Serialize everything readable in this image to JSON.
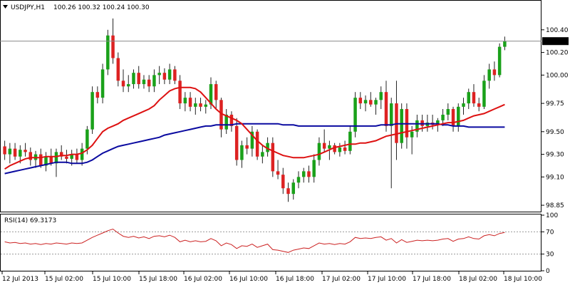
{
  "header": {
    "symbol": "USDJPY,H1",
    "ohlc": "100.26 100.32 100.24 100.30"
  },
  "colors": {
    "bull": "#1aa11a",
    "bear": "#dd2222",
    "wick": "#222222",
    "ma_fast": "#dd1111",
    "ma_slow": "#0a0aa0",
    "rsi": "#cc2222",
    "price_line": "#888888",
    "price_tag_bg": "#000000",
    "price_tag_fg": "#ffffff"
  },
  "chart_data": [
    {
      "type": "candlestick",
      "y_ticks": [
        "100.40",
        "100.20",
        "100.00",
        "99.75",
        "99.50",
        "99.30",
        "99.10",
        "98.85"
      ],
      "ylim": [
        98.8,
        100.55
      ],
      "current_price": "100.30",
      "x_labels": [
        "12 Jul 2013",
        "15 Jul 02:00",
        "15 Jul 10:00",
        "15 Jul 18:00",
        "16 Jul 02:00",
        "16 Jul 10:00",
        "16 Jul 18:00",
        "17 Jul 02:00",
        "17 Jul 10:00",
        "17 Jul 18:00",
        "18 Jul 02:00",
        "18 Jul 10:00"
      ],
      "candles": [
        [
          99.37,
          99.42,
          99.25,
          99.3
        ],
        [
          99.3,
          99.4,
          99.22,
          99.35
        ],
        [
          99.35,
          99.4,
          99.25,
          99.28
        ],
        [
          99.28,
          99.38,
          99.22,
          99.34
        ],
        [
          99.34,
          99.4,
          99.28,
          99.32
        ],
        [
          99.32,
          99.36,
          99.2,
          99.25
        ],
        [
          99.25,
          99.33,
          99.18,
          99.3
        ],
        [
          99.3,
          99.35,
          99.18,
          99.2
        ],
        [
          99.2,
          99.32,
          99.15,
          99.28
        ],
        [
          99.28,
          99.35,
          99.2,
          99.22
        ],
        [
          99.22,
          99.35,
          99.1,
          99.32
        ],
        [
          99.32,
          99.38,
          99.25,
          99.28
        ],
        [
          99.28,
          99.34,
          99.22,
          99.26
        ],
        [
          99.26,
          99.34,
          99.2,
          99.3
        ],
        [
          99.3,
          99.35,
          99.22,
          99.25
        ],
        [
          99.25,
          99.4,
          99.2,
          99.35
        ],
        [
          99.35,
          99.55,
          99.3,
          99.52
        ],
        [
          99.52,
          99.9,
          99.48,
          99.85
        ],
        [
          99.85,
          99.9,
          99.75,
          99.8
        ],
        [
          99.8,
          100.1,
          99.75,
          100.05
        ],
        [
          100.05,
          100.4,
          100.0,
          100.35
        ],
        [
          100.35,
          100.5,
          100.1,
          100.15
        ],
        [
          100.15,
          100.2,
          99.9,
          99.95
        ],
        [
          99.95,
          100.05,
          99.85,
          99.9
        ],
        [
          99.9,
          100.0,
          99.85,
          99.92
        ],
        [
          99.92,
          100.05,
          99.88,
          100.02
        ],
        [
          100.02,
          100.08,
          99.88,
          99.92
        ],
        [
          99.92,
          100.0,
          99.88,
          99.96
        ],
        [
          99.96,
          100.0,
          99.85,
          99.9
        ],
        [
          99.9,
          100.05,
          99.85,
          100.0
        ],
        [
          100.0,
          100.08,
          99.92,
          100.02
        ],
        [
          100.02,
          100.06,
          99.92,
          99.96
        ],
        [
          99.96,
          100.1,
          99.92,
          100.05
        ],
        [
          100.05,
          100.08,
          99.92,
          99.95
        ],
        [
          99.95,
          100.0,
          99.7,
          99.75
        ],
        [
          99.75,
          99.85,
          99.68,
          99.8
        ],
        [
          99.8,
          99.85,
          99.68,
          99.72
        ],
        [
          99.72,
          99.8,
          99.65,
          99.75
        ],
        [
          99.75,
          99.8,
          99.68,
          99.72
        ],
        [
          99.72,
          99.78,
          99.66,
          99.74
        ],
        [
          99.74,
          99.98,
          99.7,
          99.92
        ],
        [
          99.92,
          99.95,
          99.7,
          99.78
        ],
        [
          99.78,
          99.8,
          99.45,
          99.52
        ],
        [
          99.52,
          99.7,
          99.48,
          99.65
        ],
        [
          99.65,
          99.68,
          99.5,
          99.55
        ],
        [
          99.55,
          99.62,
          99.2,
          99.25
        ],
        [
          99.25,
          99.42,
          99.18,
          99.38
        ],
        [
          99.38,
          99.45,
          99.3,
          99.35
        ],
        [
          99.35,
          99.55,
          99.28,
          99.5
        ],
        [
          99.5,
          99.52,
          99.25,
          99.28
        ],
        [
          99.28,
          99.38,
          99.22,
          99.32
        ],
        [
          99.32,
          99.45,
          99.28,
          99.4
        ],
        [
          99.4,
          99.45,
          99.1,
          99.15
        ],
        [
          99.15,
          99.25,
          99.08,
          99.12
        ],
        [
          99.12,
          99.18,
          98.95,
          99.0
        ],
        [
          99.0,
          99.05,
          98.88,
          98.95
        ],
        [
          98.95,
          99.08,
          98.9,
          99.05
        ],
        [
          99.05,
          99.15,
          99.0,
          99.1
        ],
        [
          99.1,
          99.18,
          99.05,
          99.15
        ],
        [
          99.15,
          99.2,
          99.05,
          99.1
        ],
        [
          99.1,
          99.3,
          99.05,
          99.25
        ],
        [
          99.25,
          99.45,
          99.2,
          99.4
        ],
        [
          99.4,
          99.52,
          99.32,
          99.35
        ],
        [
          99.35,
          99.42,
          99.25,
          99.38
        ],
        [
          99.38,
          99.4,
          99.3,
          99.32
        ],
        [
          99.32,
          99.4,
          99.28,
          99.36
        ],
        [
          99.36,
          99.42,
          99.3,
          99.33
        ],
        [
          99.33,
          99.55,
          99.3,
          99.5
        ],
        [
          99.5,
          99.85,
          99.45,
          99.8
        ],
        [
          99.8,
          99.85,
          99.7,
          99.75
        ],
        [
          99.75,
          99.82,
          99.68,
          99.78
        ],
        [
          99.78,
          99.85,
          99.72,
          99.74
        ],
        [
          99.74,
          99.8,
          99.65,
          99.78
        ],
        [
          99.78,
          99.9,
          99.7,
          99.85
        ],
        [
          99.85,
          99.95,
          99.5,
          99.55
        ],
        [
          99.55,
          99.8,
          99.0,
          99.75
        ],
        [
          99.75,
          99.95,
          99.25,
          99.4
        ],
        [
          99.4,
          99.75,
          99.35,
          99.7
        ],
        [
          99.7,
          99.75,
          99.35,
          99.45
        ],
        [
          99.45,
          99.55,
          99.3,
          99.5
        ],
        [
          99.5,
          99.65,
          99.45,
          99.6
        ],
        [
          99.6,
          99.65,
          99.5,
          99.55
        ],
        [
          99.55,
          99.65,
          99.5,
          99.58
        ],
        [
          99.58,
          99.65,
          99.52,
          99.56
        ],
        [
          99.56,
          99.62,
          99.5,
          99.6
        ],
        [
          99.6,
          99.7,
          99.55,
          99.65
        ],
        [
          99.65,
          99.75,
          99.6,
          99.7
        ],
        [
          99.7,
          99.72,
          99.5,
          99.55
        ],
        [
          99.55,
          99.75,
          99.5,
          99.72
        ],
        [
          99.72,
          99.8,
          99.65,
          99.75
        ],
        [
          99.75,
          99.88,
          99.7,
          99.85
        ],
        [
          99.85,
          99.92,
          99.72,
          99.75
        ],
        [
          99.75,
          99.8,
          99.68,
          99.72
        ],
        [
          99.72,
          100.0,
          99.7,
          99.95
        ],
        [
          99.95,
          100.1,
          99.88,
          100.05
        ],
        [
          100.05,
          100.12,
          99.95,
          100.0
        ],
        [
          100.0,
          100.28,
          99.98,
          100.25
        ],
        [
          100.25,
          100.34,
          100.22,
          100.3
        ]
      ],
      "ma_fast": [
        99.17,
        99.2,
        99.22,
        99.24,
        99.26,
        99.27,
        99.27,
        99.27,
        99.28,
        99.28,
        99.28,
        99.29,
        99.29,
        99.3,
        99.3,
        99.31,
        99.34,
        99.38,
        99.44,
        99.5,
        99.53,
        99.55,
        99.57,
        99.6,
        99.62,
        99.64,
        99.66,
        99.68,
        99.7,
        99.73,
        99.78,
        99.82,
        99.86,
        99.88,
        99.89,
        99.89,
        99.89,
        99.88,
        99.85,
        99.8,
        99.75,
        99.7,
        99.66,
        99.64,
        99.62,
        99.6,
        99.57,
        99.52,
        99.47,
        99.42,
        99.38,
        99.35,
        99.33,
        99.31,
        99.29,
        99.28,
        99.27,
        99.27,
        99.27,
        99.28,
        99.29,
        99.3,
        99.32,
        99.34,
        99.36,
        99.37,
        99.38,
        99.39,
        99.39,
        99.4,
        99.4,
        99.41,
        99.42,
        99.44,
        99.46,
        99.47,
        99.48,
        99.49,
        99.5,
        99.51,
        99.52,
        99.53,
        99.54,
        99.55,
        99.56,
        99.57,
        99.58,
        99.58,
        99.59,
        99.6,
        99.62,
        99.64,
        99.65,
        99.66,
        99.68,
        99.7,
        99.72,
        99.74
      ],
      "ma_slow": [
        99.13,
        99.14,
        99.15,
        99.16,
        99.17,
        99.18,
        99.19,
        99.2,
        99.21,
        99.22,
        99.23,
        99.23,
        99.23,
        99.22,
        99.22,
        99.22,
        99.23,
        99.25,
        99.28,
        99.31,
        99.33,
        99.35,
        99.37,
        99.38,
        99.39,
        99.4,
        99.41,
        99.42,
        99.43,
        99.44,
        99.45,
        99.47,
        99.48,
        99.49,
        99.5,
        99.51,
        99.52,
        99.53,
        99.54,
        99.55,
        99.55,
        99.56,
        99.56,
        99.56,
        99.56,
        99.57,
        99.57,
        99.57,
        99.57,
        99.57,
        99.57,
        99.57,
        99.57,
        99.57,
        99.56,
        99.56,
        99.56,
        99.55,
        99.55,
        99.55,
        99.55,
        99.55,
        99.55,
        99.55,
        99.55,
        99.55,
        99.55,
        99.55,
        99.55,
        99.55,
        99.55,
        99.55,
        99.55,
        99.56,
        99.56,
        99.56,
        99.57,
        99.57,
        99.57,
        99.57,
        99.57,
        99.57,
        99.57,
        99.57,
        99.57,
        99.56,
        99.56,
        99.55,
        99.55,
        99.55,
        99.54,
        99.54,
        99.54,
        99.54,
        99.54,
        99.54,
        99.54,
        99.54
      ]
    },
    {
      "type": "line",
      "title": "RSI(14) 69.3173",
      "y_ticks": [
        "100",
        "70",
        "30",
        "0"
      ],
      "ylim": [
        0,
        100
      ],
      "levels": [
        70,
        30
      ],
      "values": [
        52,
        50,
        51,
        49,
        50,
        48,
        49,
        47,
        49,
        48,
        50,
        49,
        48,
        50,
        49,
        50,
        55,
        60,
        64,
        68,
        72,
        75,
        68,
        62,
        60,
        62,
        59,
        61,
        58,
        62,
        63,
        61,
        64,
        60,
        52,
        55,
        52,
        54,
        52,
        53,
        58,
        54,
        45,
        50,
        47,
        40,
        45,
        44,
        48,
        42,
        45,
        48,
        38,
        37,
        35,
        33,
        37,
        39,
        41,
        40,
        45,
        50,
        48,
        49,
        47,
        49,
        48,
        52,
        60,
        58,
        59,
        58,
        60,
        61,
        55,
        58,
        50,
        56,
        51,
        53,
        55,
        54,
        55,
        54,
        55,
        57,
        58,
        53,
        57,
        58,
        61,
        58,
        57,
        63,
        65,
        63,
        67,
        69
      ]
    }
  ]
}
